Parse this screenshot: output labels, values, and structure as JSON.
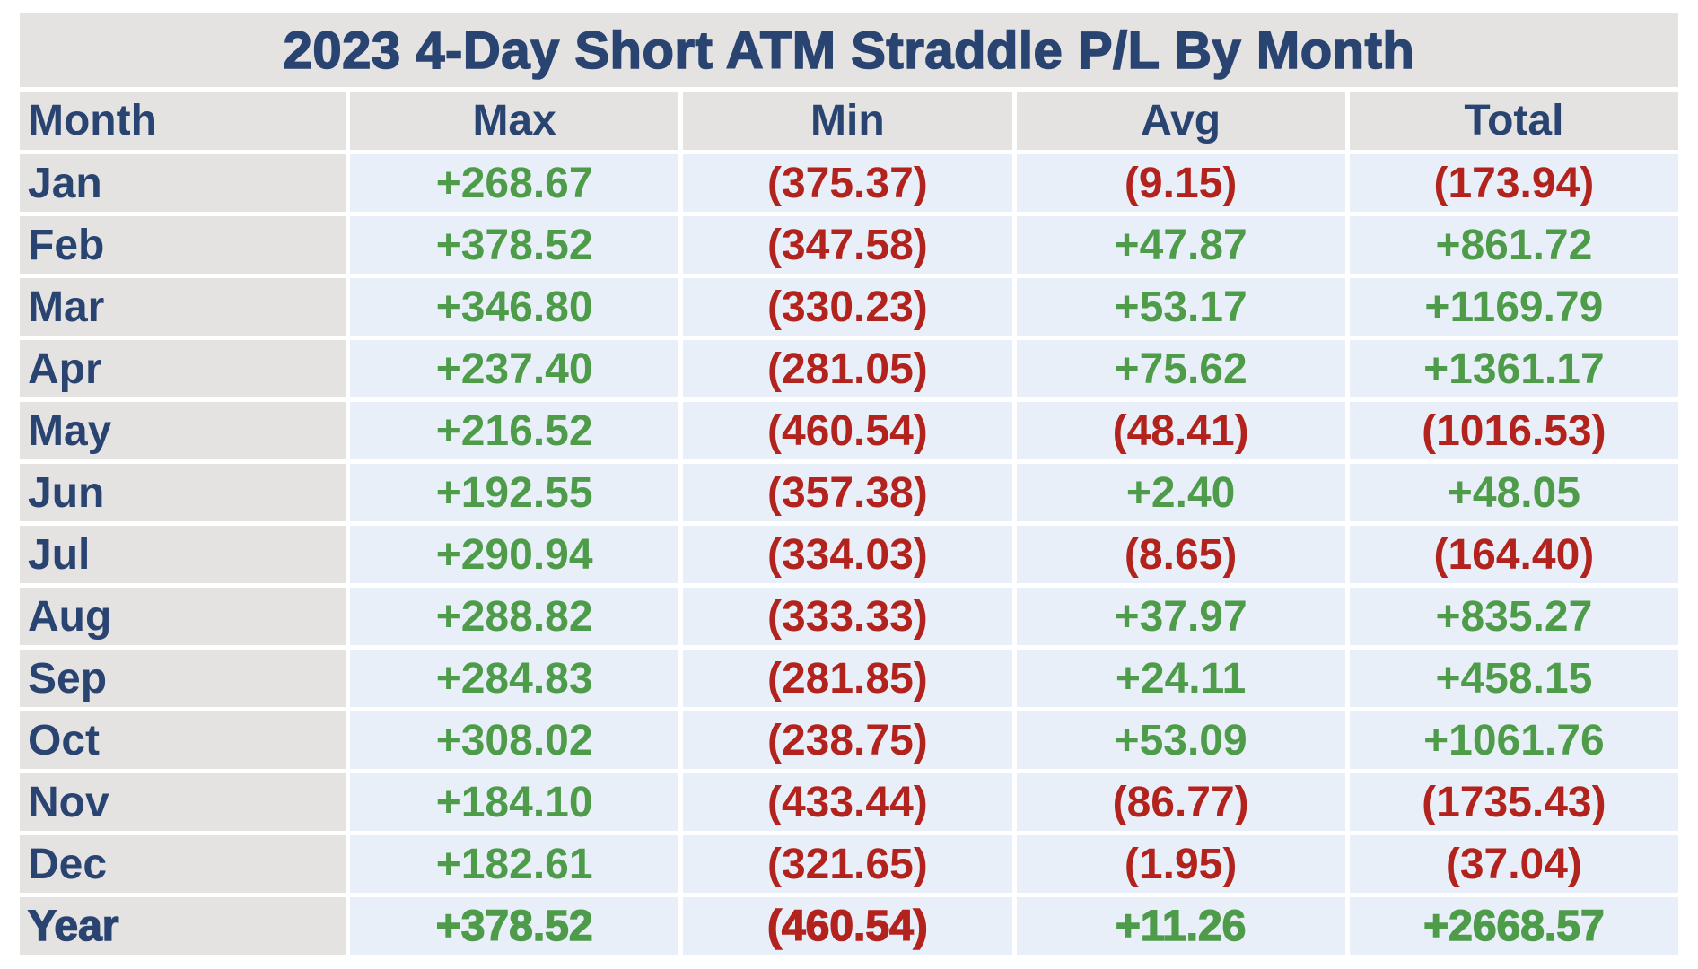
{
  "title": "2023 4-Day Short ATM Straddle P/L By Month",
  "colors": {
    "navy": "#2a4472",
    "positive": "#4e9c4a",
    "negative": "#b3231d",
    "label_bg": "#e5e3e1",
    "value_bg": "#e8eff8"
  },
  "chart_data": {
    "type": "table",
    "title": "2023 4-Day Short ATM Straddle P/L By Month",
    "columns": [
      "Month",
      "Max",
      "Min",
      "Avg",
      "Total"
    ],
    "rows": [
      {
        "label": "Jan",
        "emphasis": false,
        "values": [
          "+268.67",
          "(375.37)",
          "(9.15)",
          "(173.94)"
        ]
      },
      {
        "label": "Feb",
        "emphasis": false,
        "values": [
          "+378.52",
          "(347.58)",
          "+47.87",
          "+861.72"
        ]
      },
      {
        "label": "Mar",
        "emphasis": false,
        "values": [
          "+346.80",
          "(330.23)",
          "+53.17",
          "+1169.79"
        ]
      },
      {
        "label": "Apr",
        "emphasis": false,
        "values": [
          "+237.40",
          "(281.05)",
          "+75.62",
          "+1361.17"
        ]
      },
      {
        "label": "May",
        "emphasis": false,
        "values": [
          "+216.52",
          "(460.54)",
          "(48.41)",
          "(1016.53)"
        ]
      },
      {
        "label": "Jun",
        "emphasis": false,
        "values": [
          "+192.55",
          "(357.38)",
          "+2.40",
          "+48.05"
        ]
      },
      {
        "label": "Jul",
        "emphasis": false,
        "values": [
          "+290.94",
          "(334.03)",
          "(8.65)",
          "(164.40)"
        ]
      },
      {
        "label": "Aug",
        "emphasis": false,
        "values": [
          "+288.82",
          "(333.33)",
          "+37.97",
          "+835.27"
        ]
      },
      {
        "label": "Sep",
        "emphasis": false,
        "values": [
          "+284.83",
          "(281.85)",
          "+24.11",
          "+458.15"
        ]
      },
      {
        "label": "Oct",
        "emphasis": false,
        "values": [
          "+308.02",
          "(238.75)",
          "+53.09",
          "+1061.76"
        ]
      },
      {
        "label": "Nov",
        "emphasis": false,
        "values": [
          "+184.10",
          "(433.44)",
          "(86.77)",
          "(1735.43)"
        ]
      },
      {
        "label": "Dec",
        "emphasis": false,
        "values": [
          "+182.61",
          "(321.65)",
          "(1.95)",
          "(37.04)"
        ]
      },
      {
        "label": "Year",
        "emphasis": true,
        "values": [
          "+378.52",
          "(460.54)",
          "+11.26",
          "+2668.57"
        ]
      }
    ]
  }
}
